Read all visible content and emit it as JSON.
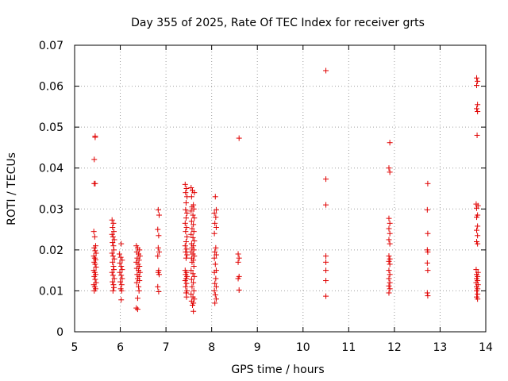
{
  "chart_data": {
    "type": "scatter",
    "title": "Day 355 of 2025, Rate Of TEC Index for receiver grts",
    "xlabel": "GPS time / hours",
    "ylabel": "ROTI / TECUs",
    "xlim": [
      5,
      14
    ],
    "ylim": [
      0,
      0.07
    ],
    "xticks": [
      "5",
      "6",
      "7",
      "8",
      "9",
      "10",
      "11",
      "12",
      "13",
      "14"
    ],
    "yticks": [
      "0",
      "0.01",
      "0.02",
      "0.03",
      "0.04",
      "0.05",
      "0.06",
      "0.07"
    ],
    "grid": true,
    "marker": "+",
    "color": "#e00000",
    "points": [
      [
        5.45,
        0.0475
      ],
      [
        5.45,
        0.0478
      ],
      [
        5.43,
        0.0421
      ],
      [
        5.43,
        0.0362
      ],
      [
        5.45,
        0.0362
      ],
      [
        5.42,
        0.0245
      ],
      [
        5.44,
        0.0232
      ],
      [
        5.46,
        0.021
      ],
      [
        5.43,
        0.0205
      ],
      [
        5.45,
        0.0198
      ],
      [
        5.47,
        0.0192
      ],
      [
        5.42,
        0.0185
      ],
      [
        5.44,
        0.018
      ],
      [
        5.46,
        0.0176
      ],
      [
        5.43,
        0.017
      ],
      [
        5.45,
        0.0165
      ],
      [
        5.47,
        0.0158
      ],
      [
        5.42,
        0.015
      ],
      [
        5.44,
        0.0145
      ],
      [
        5.46,
        0.014
      ],
      [
        5.43,
        0.0135
      ],
      [
        5.45,
        0.0128
      ],
      [
        5.47,
        0.012
      ],
      [
        5.42,
        0.0115
      ],
      [
        5.44,
        0.011
      ],
      [
        5.46,
        0.0105
      ],
      [
        5.43,
        0.01
      ],
      [
        5.82,
        0.0273
      ],
      [
        5.85,
        0.0265
      ],
      [
        5.83,
        0.0255
      ],
      [
        5.86,
        0.0245
      ],
      [
        5.82,
        0.0238
      ],
      [
        5.84,
        0.0232
      ],
      [
        5.87,
        0.0225
      ],
      [
        5.83,
        0.0218
      ],
      [
        5.85,
        0.021
      ],
      [
        5.86,
        0.02
      ],
      [
        5.82,
        0.0192
      ],
      [
        5.84,
        0.0185
      ],
      [
        5.87,
        0.0178
      ],
      [
        5.83,
        0.017
      ],
      [
        5.85,
        0.016
      ],
      [
        5.86,
        0.0152
      ],
      [
        5.82,
        0.0145
      ],
      [
        5.84,
        0.0138
      ],
      [
        5.87,
        0.013
      ],
      [
        5.83,
        0.0122
      ],
      [
        5.85,
        0.0115
      ],
      [
        5.86,
        0.0108
      ],
      [
        5.84,
        0.01
      ],
      [
        6.02,
        0.0215
      ],
      [
        5.98,
        0.019
      ],
      [
        6.01,
        0.0182
      ],
      [
        6.04,
        0.0175
      ],
      [
        5.99,
        0.0168
      ],
      [
        6.02,
        0.016
      ],
      [
        6.04,
        0.0152
      ],
      [
        5.99,
        0.0145
      ],
      [
        6.02,
        0.0138
      ],
      [
        6.04,
        0.013
      ],
      [
        6.0,
        0.0122
      ],
      [
        6.03,
        0.0115
      ],
      [
        6.01,
        0.0105
      ],
      [
        6.03,
        0.01
      ],
      [
        6.02,
        0.0078
      ],
      [
        6.35,
        0.021
      ],
      [
        6.38,
        0.0205
      ],
      [
        6.42,
        0.02
      ],
      [
        6.36,
        0.0195
      ],
      [
        6.4,
        0.019
      ],
      [
        6.43,
        0.0185
      ],
      [
        6.37,
        0.018
      ],
      [
        6.41,
        0.0175
      ],
      [
        6.35,
        0.017
      ],
      [
        6.39,
        0.0165
      ],
      [
        6.42,
        0.016
      ],
      [
        6.36,
        0.0155
      ],
      [
        6.4,
        0.015
      ],
      [
        6.43,
        0.0145
      ],
      [
        6.37,
        0.014
      ],
      [
        6.41,
        0.0135
      ],
      [
        6.38,
        0.013
      ],
      [
        6.42,
        0.0125
      ],
      [
        6.36,
        0.012
      ],
      [
        6.4,
        0.011
      ],
      [
        6.41,
        0.01
      ],
      [
        6.38,
        0.0082
      ],
      [
        6.35,
        0.0058
      ],
      [
        6.38,
        0.0055
      ],
      [
        6.83,
        0.0298
      ],
      [
        6.85,
        0.0285
      ],
      [
        6.82,
        0.025
      ],
      [
        6.84,
        0.0235
      ],
      [
        6.83,
        0.0205
      ],
      [
        6.85,
        0.0195
      ],
      [
        6.82,
        0.0185
      ],
      [
        6.84,
        0.015
      ],
      [
        6.83,
        0.0145
      ],
      [
        6.85,
        0.014
      ],
      [
        6.82,
        0.011
      ],
      [
        6.84,
        0.0098
      ],
      [
        7.42,
        0.036
      ],
      [
        7.45,
        0.035
      ],
      [
        7.43,
        0.034
      ],
      [
        7.46,
        0.033
      ],
      [
        7.44,
        0.0315
      ],
      [
        7.43,
        0.0298
      ],
      [
        7.46,
        0.029
      ],
      [
        7.44,
        0.0278
      ],
      [
        7.42,
        0.0265
      ],
      [
        7.45,
        0.0255
      ],
      [
        7.43,
        0.0245
      ],
      [
        7.46,
        0.0232
      ],
      [
        7.44,
        0.022
      ],
      [
        7.42,
        0.021
      ],
      [
        7.45,
        0.0202
      ],
      [
        7.43,
        0.0195
      ],
      [
        7.46,
        0.0188
      ],
      [
        7.44,
        0.018
      ],
      [
        7.42,
        0.015
      ],
      [
        7.45,
        0.0145
      ],
      [
        7.43,
        0.014
      ],
      [
        7.46,
        0.0135
      ],
      [
        7.44,
        0.013
      ],
      [
        7.42,
        0.0125
      ],
      [
        7.45,
        0.0118
      ],
      [
        7.43,
        0.011
      ],
      [
        7.46,
        0.01
      ],
      [
        7.44,
        0.0095
      ],
      [
        7.45,
        0.0085
      ],
      [
        7.55,
        0.0352
      ],
      [
        7.58,
        0.0345
      ],
      [
        7.62,
        0.034
      ],
      [
        7.56,
        0.033
      ],
      [
        7.6,
        0.031
      ],
      [
        7.57,
        0.0305
      ],
      [
        7.61,
        0.03
      ],
      [
        7.55,
        0.0295
      ],
      [
        7.59,
        0.0285
      ],
      [
        7.62,
        0.0278
      ],
      [
        7.56,
        0.027
      ],
      [
        7.6,
        0.0262
      ],
      [
        7.57,
        0.0252
      ],
      [
        7.61,
        0.0245
      ],
      [
        7.55,
        0.0238
      ],
      [
        7.59,
        0.023
      ],
      [
        7.62,
        0.0222
      ],
      [
        7.56,
        0.0215
      ],
      [
        7.6,
        0.021
      ],
      [
        7.57,
        0.0205
      ],
      [
        7.61,
        0.02
      ],
      [
        7.55,
        0.0195
      ],
      [
        7.59,
        0.019
      ],
      [
        7.62,
        0.0185
      ],
      [
        7.56,
        0.018
      ],
      [
        7.6,
        0.0175
      ],
      [
        7.57,
        0.017
      ],
      [
        7.61,
        0.016
      ],
      [
        7.55,
        0.015
      ],
      [
        7.59,
        0.0142
      ],
      [
        7.62,
        0.0135
      ],
      [
        7.56,
        0.0128
      ],
      [
        7.6,
        0.012
      ],
      [
        7.57,
        0.011
      ],
      [
        7.61,
        0.01
      ],
      [
        7.55,
        0.0092
      ],
      [
        7.59,
        0.0085
      ],
      [
        7.62,
        0.008
      ],
      [
        7.56,
        0.0075
      ],
      [
        7.6,
        0.007
      ],
      [
        7.58,
        0.0065
      ],
      [
        7.6,
        0.005
      ],
      [
        8.08,
        0.033
      ],
      [
        8.1,
        0.0298
      ],
      [
        8.06,
        0.029
      ],
      [
        8.09,
        0.028
      ],
      [
        8.07,
        0.0265
      ],
      [
        8.1,
        0.0255
      ],
      [
        8.06,
        0.024
      ],
      [
        8.09,
        0.0205
      ],
      [
        8.07,
        0.0195
      ],
      [
        8.1,
        0.0188
      ],
      [
        8.06,
        0.018
      ],
      [
        8.08,
        0.0165
      ],
      [
        8.1,
        0.015
      ],
      [
        8.06,
        0.0145
      ],
      [
        8.09,
        0.013
      ],
      [
        8.07,
        0.0118
      ],
      [
        8.1,
        0.011
      ],
      [
        8.06,
        0.01
      ],
      [
        8.08,
        0.009
      ],
      [
        8.1,
        0.008
      ],
      [
        8.07,
        0.007
      ],
      [
        8.6,
        0.0473
      ],
      [
        8.58,
        0.019
      ],
      [
        8.6,
        0.018
      ],
      [
        8.58,
        0.017
      ],
      [
        8.6,
        0.0135
      ],
      [
        8.58,
        0.013
      ],
      [
        8.6,
        0.0102
      ],
      [
        10.5,
        0.0638
      ],
      [
        10.5,
        0.0373
      ],
      [
        10.5,
        0.031
      ],
      [
        10.5,
        0.0185
      ],
      [
        10.5,
        0.017
      ],
      [
        10.5,
        0.015
      ],
      [
        10.5,
        0.0125
      ],
      [
        10.5,
        0.0087
      ],
      [
        11.9,
        0.0462
      ],
      [
        11.88,
        0.04
      ],
      [
        11.9,
        0.039
      ],
      [
        11.88,
        0.0277
      ],
      [
        11.9,
        0.0265
      ],
      [
        11.88,
        0.0252
      ],
      [
        11.9,
        0.024
      ],
      [
        11.88,
        0.0225
      ],
      [
        11.9,
        0.0215
      ],
      [
        11.88,
        0.0185
      ],
      [
        11.9,
        0.0178
      ],
      [
        11.88,
        0.0172
      ],
      [
        11.9,
        0.0165
      ],
      [
        11.88,
        0.015
      ],
      [
        11.9,
        0.014
      ],
      [
        11.88,
        0.013
      ],
      [
        11.9,
        0.012
      ],
      [
        11.88,
        0.0112
      ],
      [
        11.9,
        0.0105
      ],
      [
        11.88,
        0.0095
      ],
      [
        12.73,
        0.0362
      ],
      [
        12.72,
        0.0298
      ],
      [
        12.73,
        0.024
      ],
      [
        12.72,
        0.02
      ],
      [
        12.73,
        0.0195
      ],
      [
        12.72,
        0.0168
      ],
      [
        12.73,
        0.015
      ],
      [
        12.72,
        0.0095
      ],
      [
        12.73,
        0.0088
      ],
      [
        13.8,
        0.062
      ],
      [
        13.82,
        0.0612
      ],
      [
        13.8,
        0.0602
      ],
      [
        13.82,
        0.0555
      ],
      [
        13.8,
        0.0545
      ],
      [
        13.82,
        0.0538
      ],
      [
        13.81,
        0.048
      ],
      [
        13.79,
        0.0312
      ],
      [
        13.83,
        0.0308
      ],
      [
        13.8,
        0.0302
      ],
      [
        13.82,
        0.0285
      ],
      [
        13.8,
        0.028
      ],
      [
        13.82,
        0.0258
      ],
      [
        13.8,
        0.0248
      ],
      [
        13.82,
        0.0235
      ],
      [
        13.8,
        0.022
      ],
      [
        13.82,
        0.0215
      ],
      [
        13.79,
        0.0152
      ],
      [
        13.83,
        0.0145
      ],
      [
        13.8,
        0.014
      ],
      [
        13.82,
        0.0135
      ],
      [
        13.8,
        0.013
      ],
      [
        13.82,
        0.0125
      ],
      [
        13.79,
        0.012
      ],
      [
        13.83,
        0.0115
      ],
      [
        13.8,
        0.011
      ],
      [
        13.82,
        0.0105
      ],
      [
        13.8,
        0.01
      ],
      [
        13.82,
        0.0092
      ],
      [
        13.8,
        0.0085
      ],
      [
        13.82,
        0.008
      ]
    ]
  }
}
